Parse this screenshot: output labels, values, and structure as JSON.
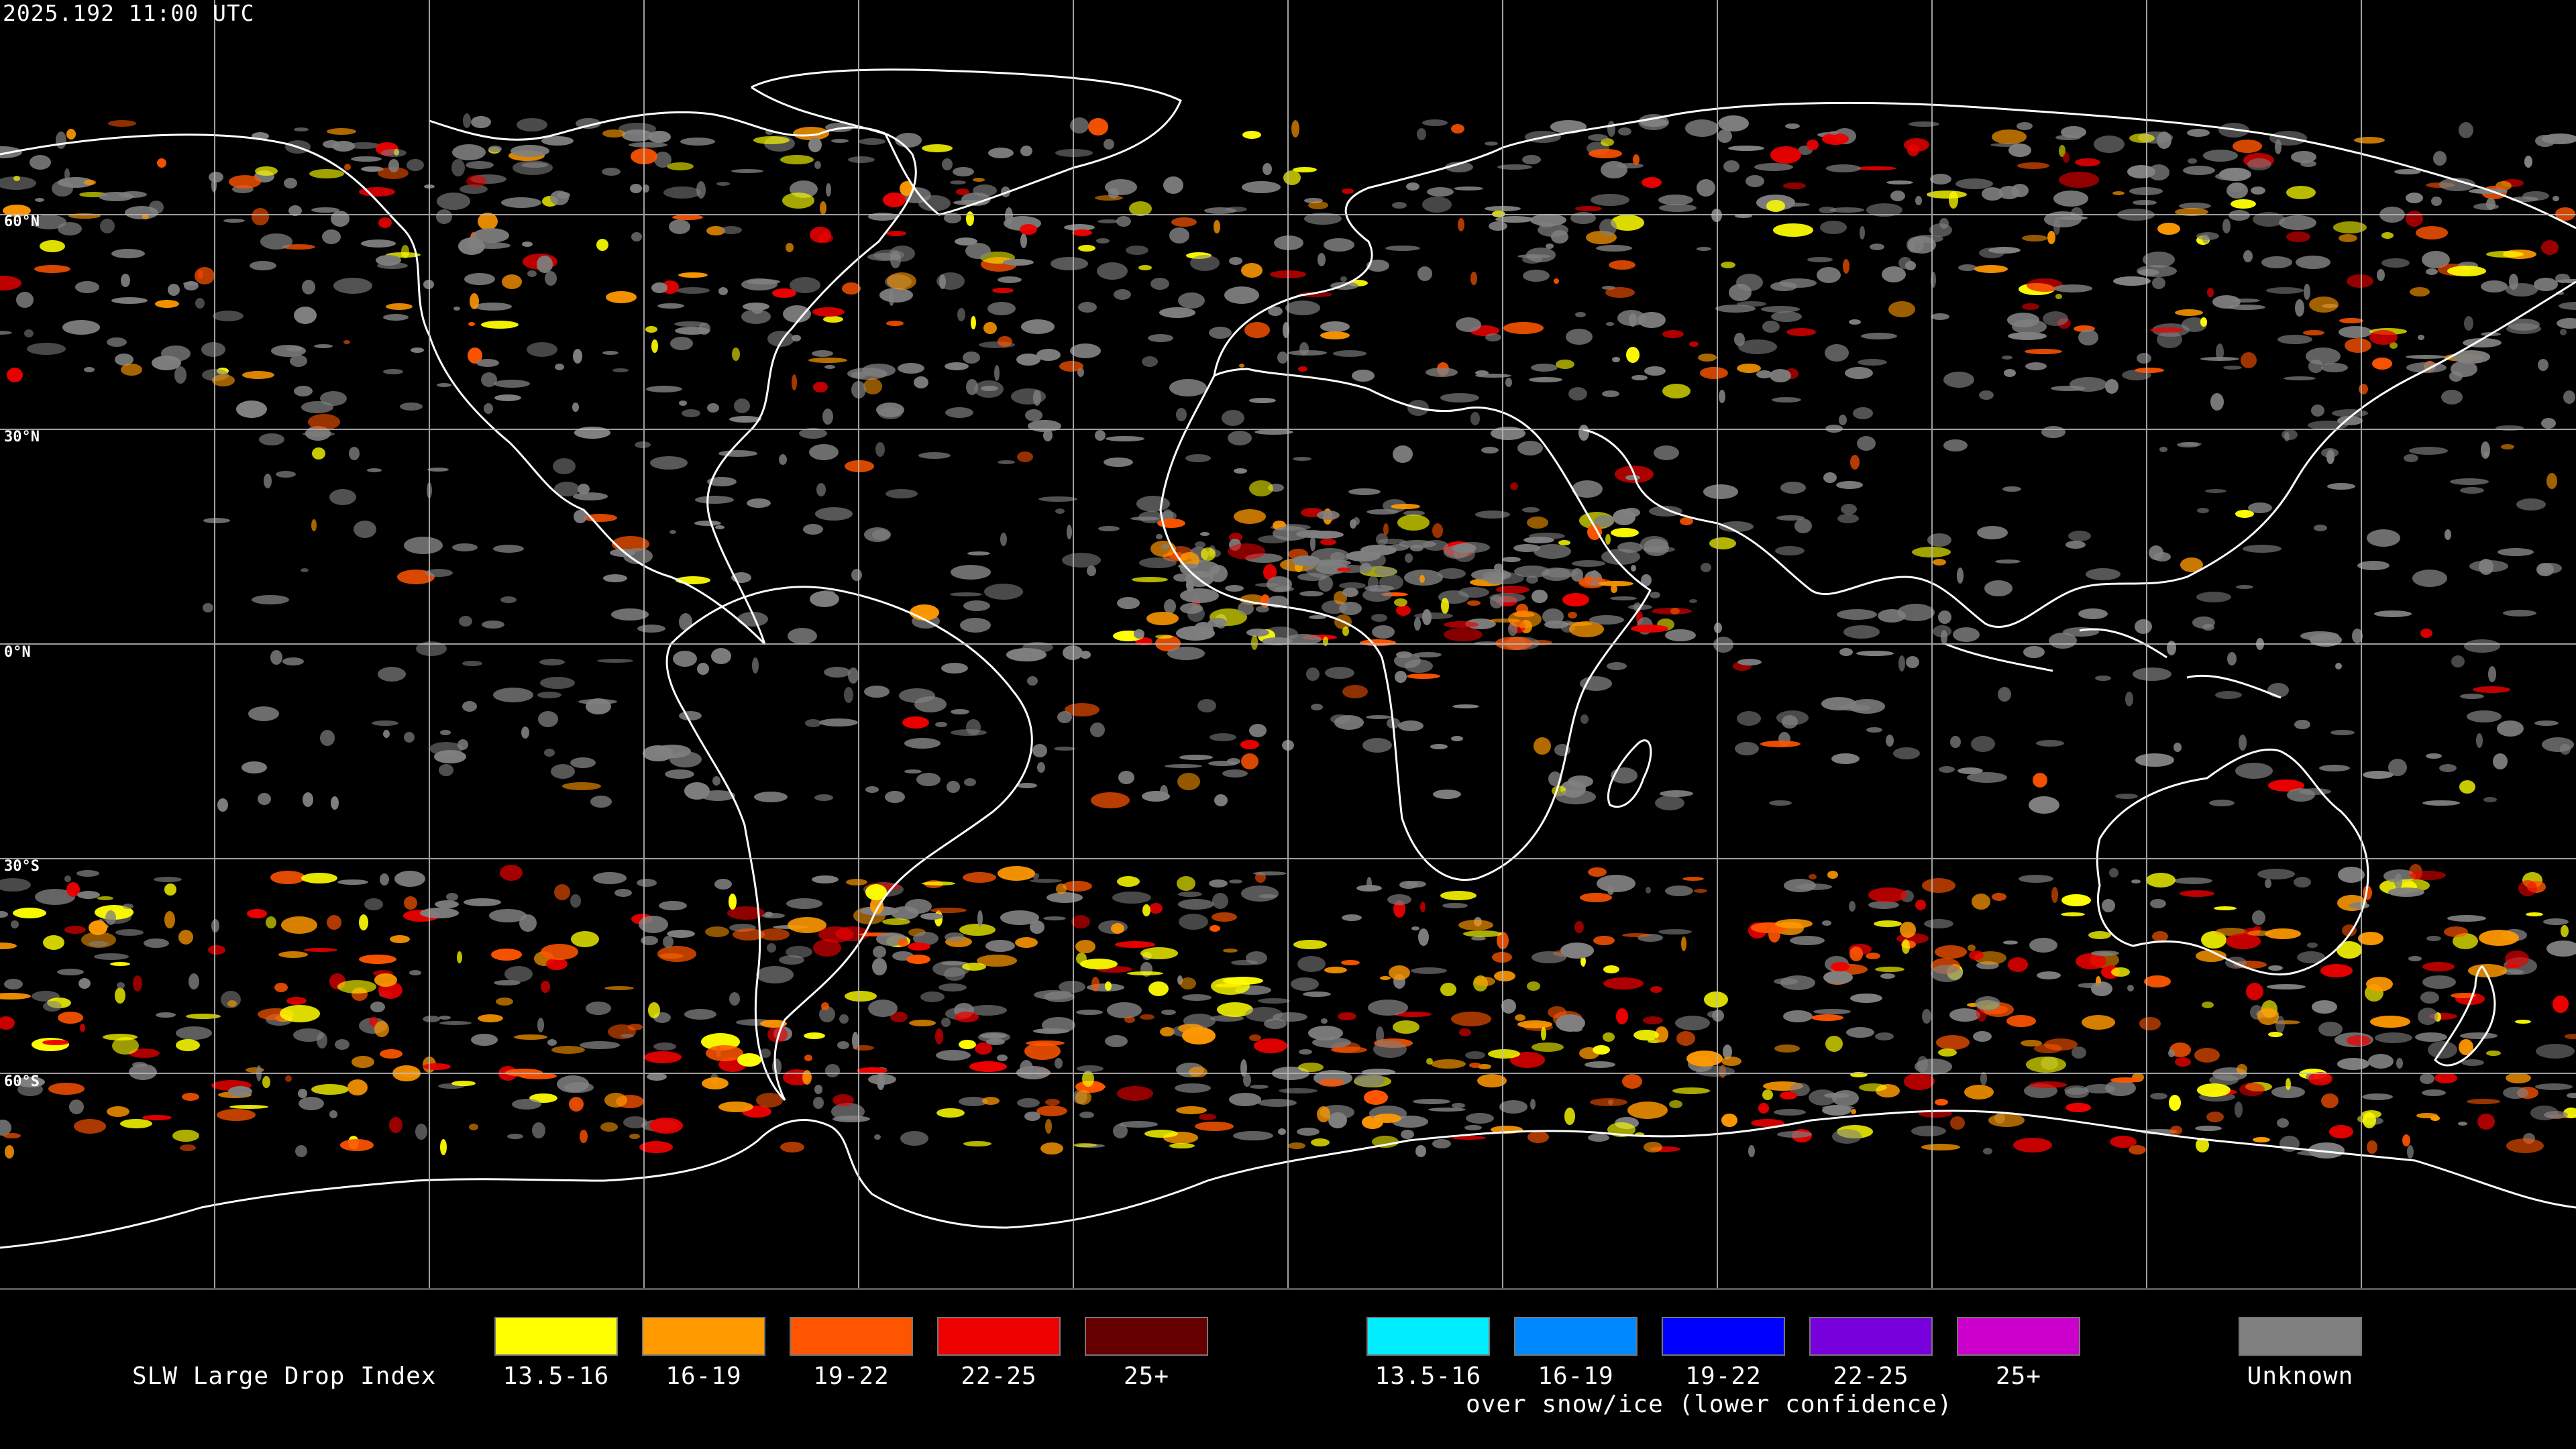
{
  "timestamp": "2025.192 11:00 UTC",
  "map": {
    "lat_labels": [
      "60°N",
      "30°N",
      "0°N",
      "30°S",
      "60°S"
    ],
    "colors": {
      "background": "#000000",
      "grid": "#bbbbbb",
      "coast": "#ffffff",
      "unknown": "#808080"
    }
  },
  "legend": {
    "title": "SLW Large Drop Index",
    "liquid": [
      {
        "label": "13.5-16",
        "color": "#ffff00"
      },
      {
        "label": "16-19",
        "color": "#ff9900"
      },
      {
        "label": "19-22",
        "color": "#ff5500"
      },
      {
        "label": "22-25",
        "color": "#ee0000"
      },
      {
        "label": "25+",
        "color": "#660000"
      }
    ],
    "snow": [
      {
        "label": "13.5-16",
        "color": "#00eeff"
      },
      {
        "label": "16-19",
        "color": "#0088ff"
      },
      {
        "label": "19-22",
        "color": "#0000ff"
      },
      {
        "label": "22-25",
        "color": "#7700dd"
      },
      {
        "label": "25+",
        "color": "#cc00cc"
      }
    ],
    "snow_note": "over snow/ice (lower confidence)",
    "unknown": {
      "label": "Unknown",
      "color": "#808080"
    }
  }
}
